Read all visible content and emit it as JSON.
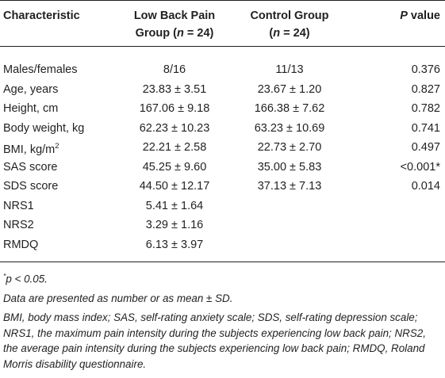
{
  "table": {
    "header": [
      [
        {
          "text": "Characteristic"
        }
      ],
      [
        {
          "text": "Low Back Pain Group ("
        },
        {
          "text": "n",
          "italic": true
        },
        {
          "text": " = 24)"
        }
      ],
      [
        {
          "text": "Control Group ("
        },
        {
          "text": "n",
          "italic": true
        },
        {
          "text": " = 24)"
        }
      ],
      [
        {
          "text": "P",
          "italic": true
        },
        {
          "text": " value"
        }
      ]
    ],
    "rows": [
      [
        [
          {
            "text": "Males/females"
          }
        ],
        "8/16",
        "11/13",
        "0.376"
      ],
      [
        [
          {
            "text": "Age, years"
          }
        ],
        "23.83 ± 3.51",
        "23.67 ± 1.20",
        "0.827"
      ],
      [
        [
          {
            "text": "Height, cm"
          }
        ],
        "167.06 ± 9.18",
        "166.38 ± 7.62",
        "0.782"
      ],
      [
        [
          {
            "text": "Body weight, kg"
          }
        ],
        "62.23 ± 10.23",
        "63.23 ± 10.69",
        "0.741"
      ],
      [
        [
          {
            "text": "BMI, kg/m"
          },
          {
            "text": "2",
            "sup": true
          }
        ],
        "22.21 ± 2.58",
        "22.73 ± 2.70",
        "0.497"
      ],
      [
        [
          {
            "text": "SAS score"
          }
        ],
        "45.25 ± 9.60",
        "35.00 ± 5.83",
        "<0.001*"
      ],
      [
        [
          {
            "text": "SDS score"
          }
        ],
        "44.50 ± 12.17",
        "37.13 ± 7.13",
        "0.014"
      ],
      [
        [
          {
            "text": "NRS1"
          }
        ],
        "5.41 ± 1.64"
      ],
      [
        [
          {
            "text": "NRS2"
          }
        ],
        "3.29 ± 1.16"
      ],
      [
        [
          {
            "text": "RMDQ"
          }
        ],
        "6.13 ± 3.97"
      ]
    ],
    "notes": [
      [
        {
          "text": "*",
          "sup": true
        },
        {
          "text": "p < 0.05."
        }
      ],
      [
        {
          "text": "Data are presented as number or as mean ± SD."
        }
      ],
      [
        {
          "text": "BMI, body mass index; SAS, self-rating anxiety scale; SDS, self-rating depression scale; NRS1, the maximum pain intensity during the subjects experiencing low back pain; NRS2, the average pain intensity during the subjects experiencing low back pain; RMDQ, Roland Morris disability questionnaire."
        }
      ]
    ]
  }
}
